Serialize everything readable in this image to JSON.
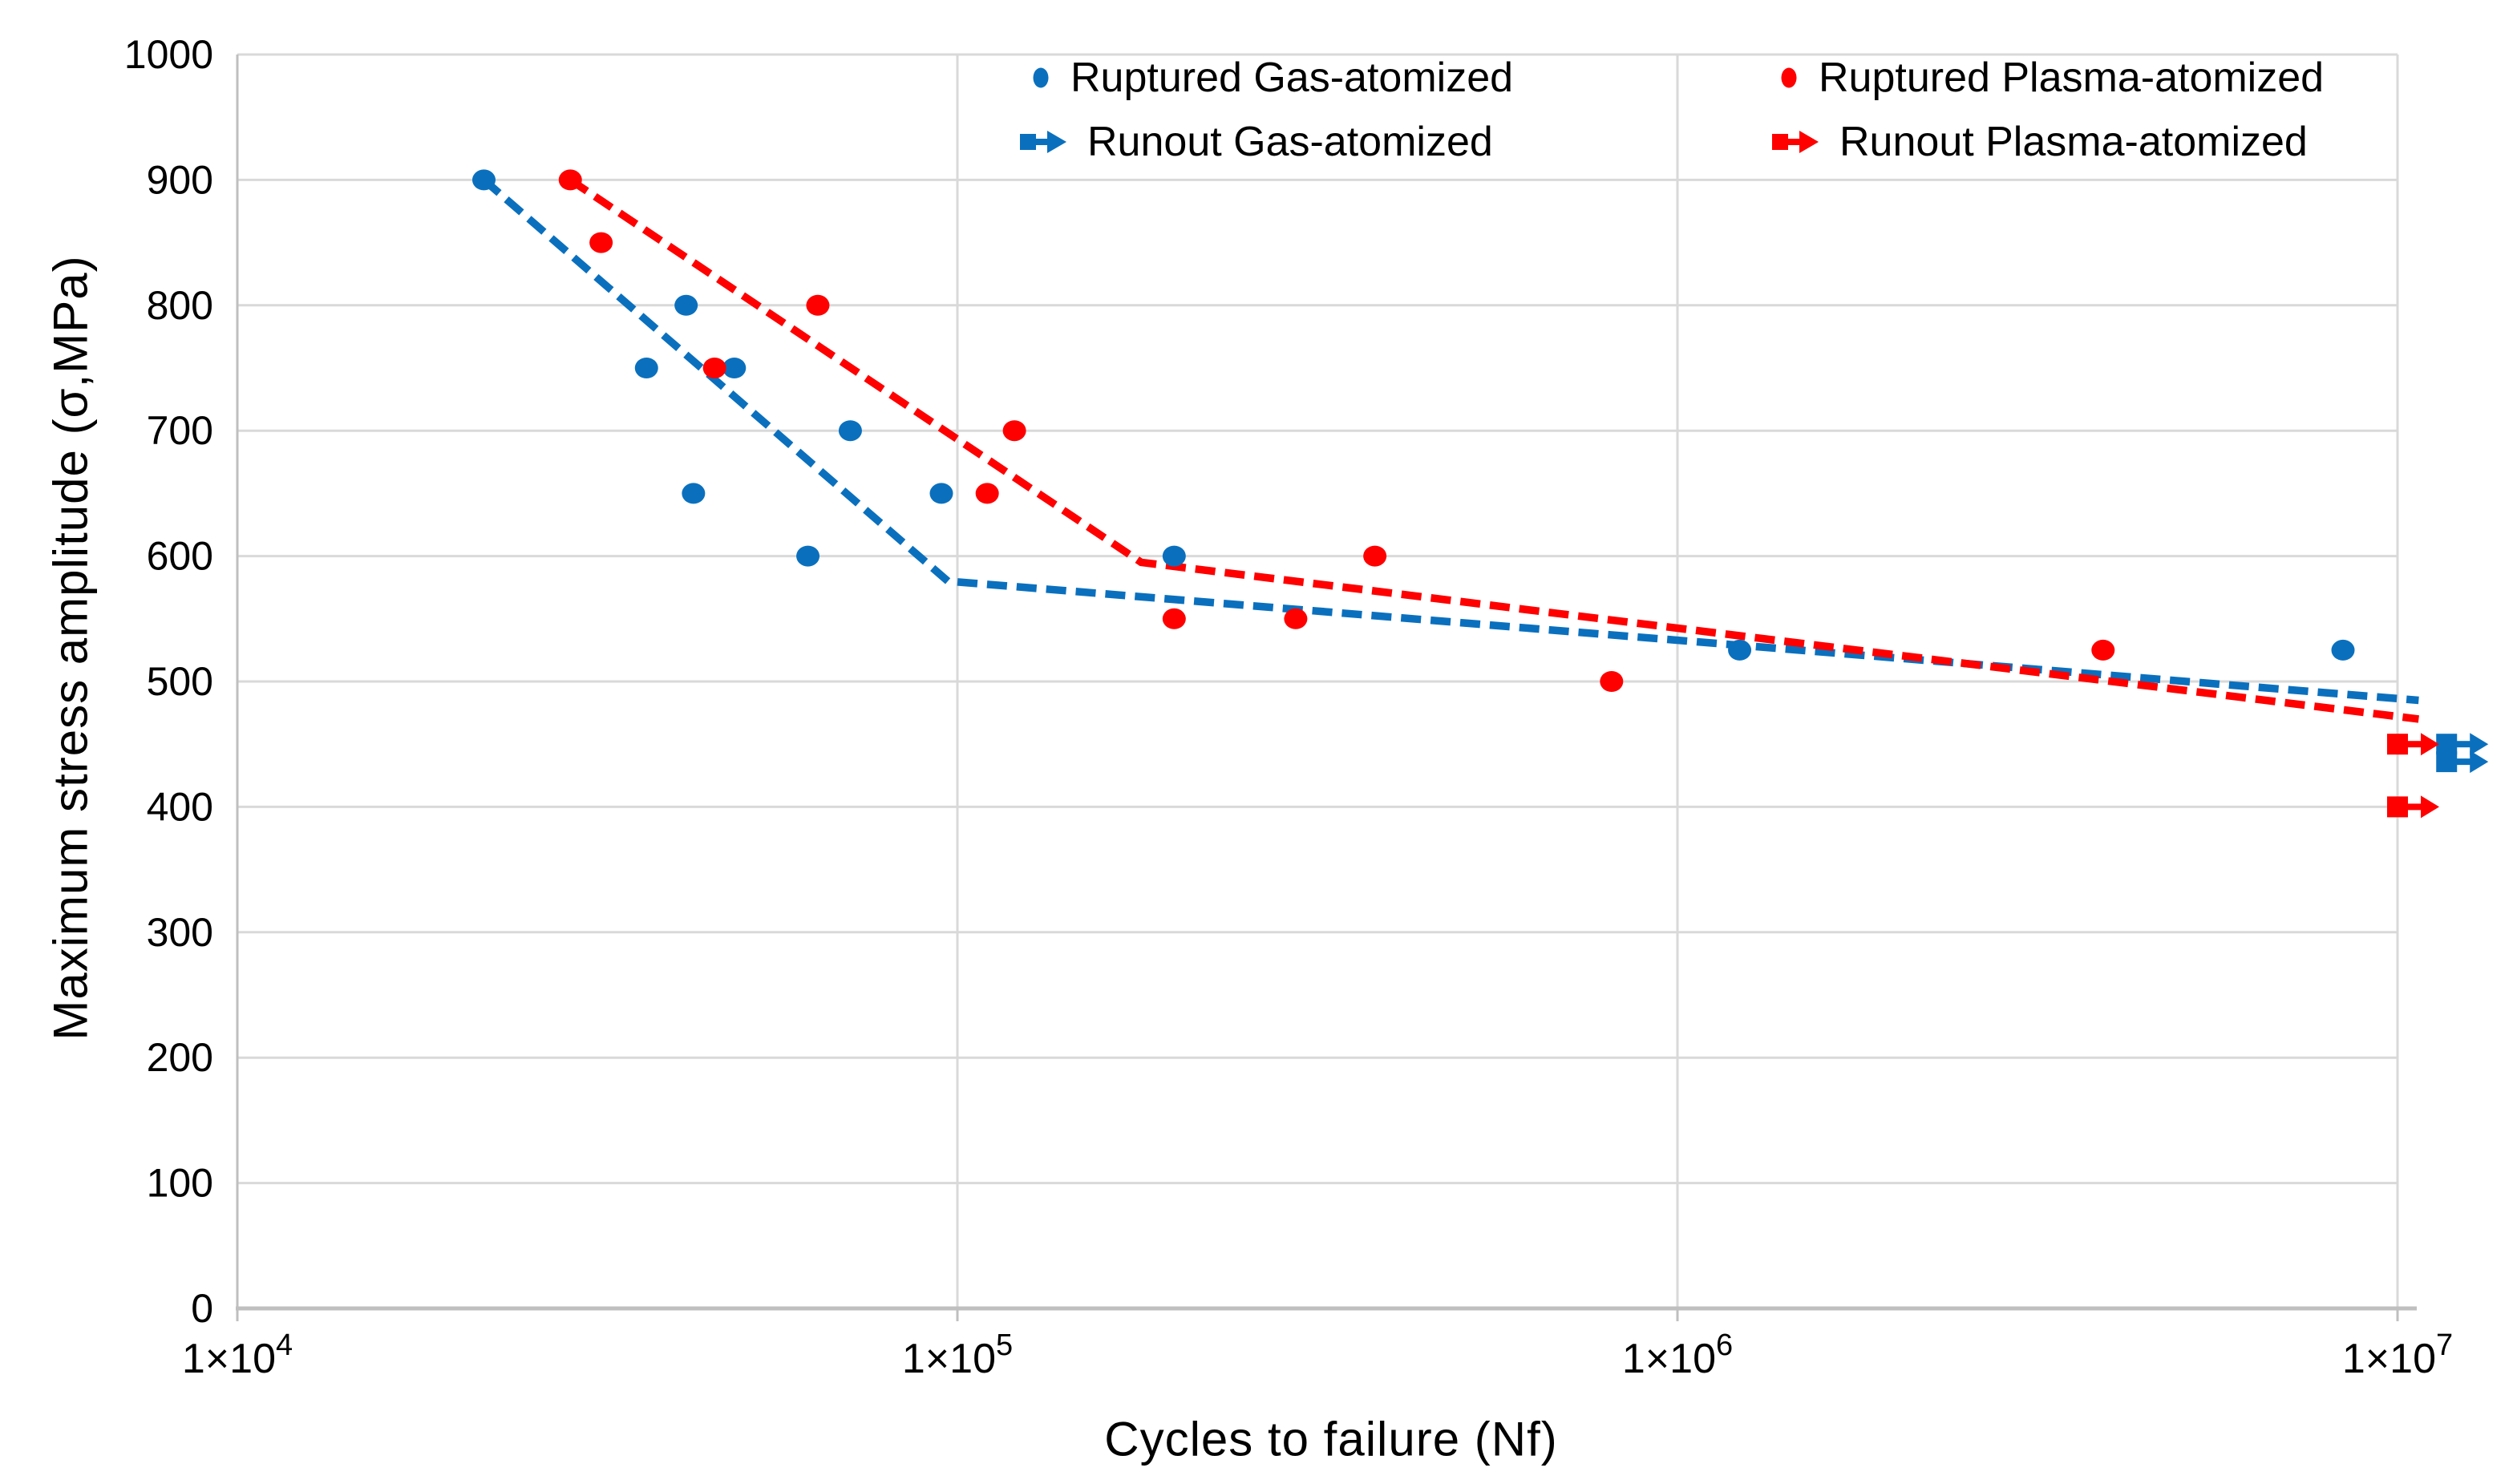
{
  "chart_data": {
    "type": "scatter",
    "title": "",
    "xlabel": "Cycles to failure (Nf)",
    "ylabel": "Maximum stress amplitude (σ,MPa)",
    "x_scale": "log",
    "xlim": [
      10000,
      10000000
    ],
    "ylim": [
      0,
      1000
    ],
    "grid": true,
    "legend_position": "top-center",
    "y_ticks": [
      0,
      100,
      200,
      300,
      400,
      500,
      600,
      700,
      800,
      900,
      1000
    ],
    "x_ticks": [
      {
        "value": 10000,
        "base": "1×10",
        "exp": "4"
      },
      {
        "value": 100000,
        "base": "1×10",
        "exp": "5"
      },
      {
        "value": 1000000,
        "base": "1×10",
        "exp": "6"
      },
      {
        "value": 10000000,
        "base": "1×10",
        "exp": "7"
      }
    ],
    "colors": {
      "gas": "#0A70BE",
      "plasma": "#FE0000",
      "gridline": "#D9D9D9",
      "axis": "#BFBFBF",
      "text": "#000000"
    },
    "series": [
      {
        "name": "Ruptured Gas-atomized",
        "marker": "circle",
        "color_key": "gas",
        "points": [
          [
            22000,
            900
          ],
          [
            37000,
            750
          ],
          [
            42000,
            800
          ],
          [
            43000,
            650
          ],
          [
            49000,
            750
          ],
          [
            62000,
            600
          ],
          [
            71000,
            700
          ],
          [
            95000,
            650
          ],
          [
            200000,
            600
          ],
          [
            1220000,
            525
          ],
          [
            8400000,
            525
          ]
        ]
      },
      {
        "name": "Ruptured Plasma-atomized",
        "marker": "circle",
        "color_key": "plasma",
        "points": [
          [
            29000,
            900
          ],
          [
            32000,
            850
          ],
          [
            46000,
            750
          ],
          [
            64000,
            800
          ],
          [
            110000,
            650
          ],
          [
            120000,
            700
          ],
          [
            200000,
            550
          ],
          [
            295000,
            550
          ],
          [
            380000,
            600
          ],
          [
            810000,
            500
          ],
          [
            3900000,
            525
          ]
        ]
      },
      {
        "name": "Runout Gas-atomized",
        "marker": "runout-arrow",
        "color_key": "gas",
        "points": [
          [
            11700000,
            450
          ],
          [
            11700000,
            436
          ]
        ]
      },
      {
        "name": "Runout Plasma-atomized",
        "marker": "runout-arrow",
        "color_key": "plasma",
        "points": [
          [
            10000000,
            450
          ],
          [
            10000000,
            400
          ]
        ]
      }
    ],
    "trend_lines": [
      {
        "series": "Gas-atomized",
        "color_key": "gas",
        "style": "dashed",
        "points": [
          [
            22000,
            900
          ],
          [
            97000,
            580
          ],
          [
            10700000,
            485
          ]
        ]
      },
      {
        "series": "Plasma-atomized",
        "color_key": "plasma",
        "style": "dashed",
        "points": [
          [
            29000,
            900
          ],
          [
            180000,
            595
          ],
          [
            10700000,
            470
          ]
        ]
      }
    ]
  }
}
